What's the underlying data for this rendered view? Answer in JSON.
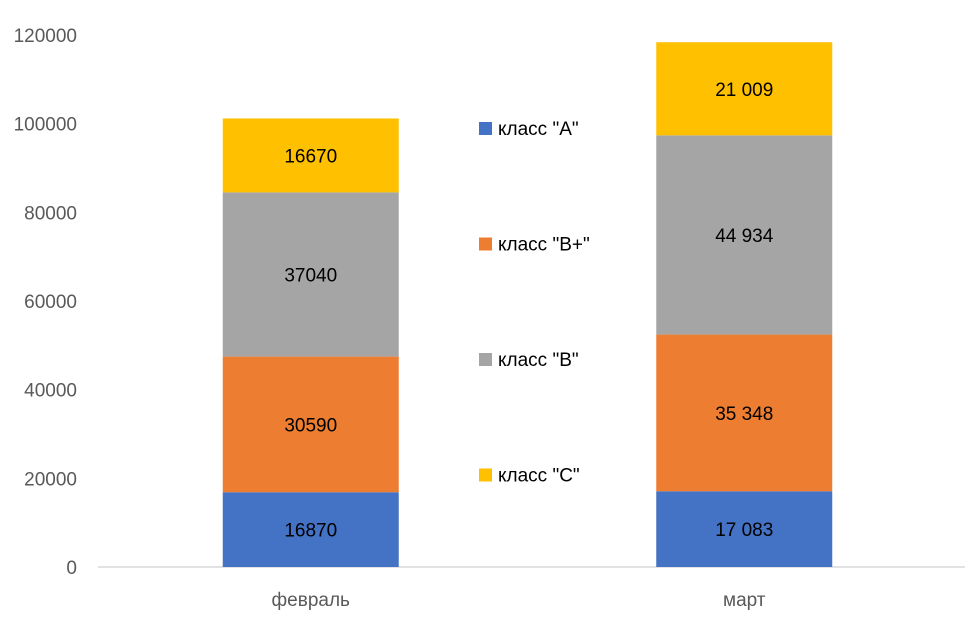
{
  "chart_data": {
    "type": "bar",
    "stacked": true,
    "categories": [
      "февраль",
      "март"
    ],
    "series": [
      {
        "name": "класс \"A\"",
        "color": "#4472C4",
        "values": [
          16870,
          17083
        ],
        "labels": [
          "16870",
          "17 083"
        ]
      },
      {
        "name": "класс \"B+\"",
        "color": "#ED7D31",
        "values": [
          30590,
          35348
        ],
        "labels": [
          "30590",
          "35 348"
        ]
      },
      {
        "name": "класс \"B\"",
        "color": "#A5A5A5",
        "values": [
          37040,
          44934
        ],
        "labels": [
          "37040",
          "44 934"
        ]
      },
      {
        "name": "класс \"C\"",
        "color": "#FFC000",
        "values": [
          16670,
          21009
        ],
        "labels": [
          "16670",
          "21 009"
        ]
      }
    ],
    "y_ticks": [
      "0",
      "20000",
      "40000",
      "60000",
      "80000",
      "100000",
      "120000"
    ],
    "ylim": [
      0,
      120000
    ],
    "grid": false,
    "legend_position": "center-right"
  }
}
